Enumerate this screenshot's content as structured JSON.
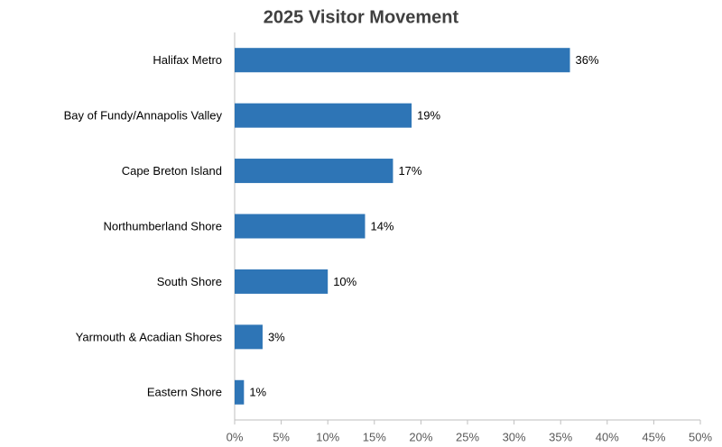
{
  "chart_data": {
    "type": "bar",
    "orientation": "horizontal",
    "title": "2025 Visitor Movement",
    "categories": [
      "Halifax Metro",
      "Bay of Fundy/Annapolis Valley",
      "Cape Breton Island",
      "Northumberland Shore",
      "South Shore",
      "Yarmouth & Acadian Shores",
      "Eastern Shore"
    ],
    "values": [
      36,
      19,
      17,
      14,
      10,
      3,
      1
    ],
    "value_labels": [
      "36%",
      "19%",
      "17%",
      "14%",
      "10%",
      "3%",
      "1%"
    ],
    "color": "#2e75b6",
    "xlim": [
      0,
      50
    ],
    "xticks": [
      {
        "value": 0,
        "label": "0%"
      },
      {
        "value": 5,
        "label": "5%"
      },
      {
        "value": 10,
        "label": "10%"
      },
      {
        "value": 15,
        "label": "15%"
      },
      {
        "value": 20,
        "label": "20%"
      },
      {
        "value": 25,
        "label": "25%"
      },
      {
        "value": 30,
        "label": "30%"
      },
      {
        "value": 35,
        "label": "35%"
      },
      {
        "value": 40,
        "label": "40%"
      },
      {
        "value": 45,
        "label": "45%"
      },
      {
        "value": 50,
        "label": "50%"
      }
    ],
    "grid": false
  }
}
